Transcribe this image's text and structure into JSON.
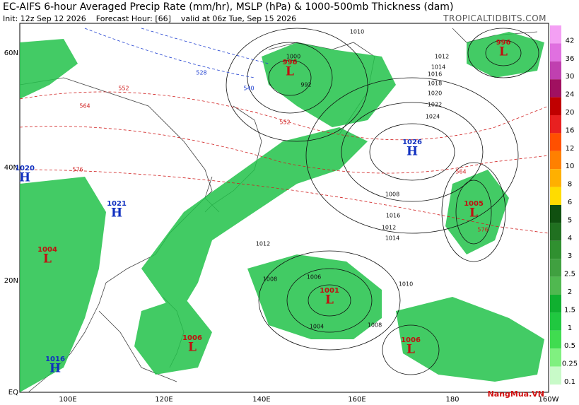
{
  "header": {
    "title": "EC-AIFS 6-hour Averaged Precip Rate (mm/hr), MSLP (hPa) & 1000-500mb Thickness (dam)",
    "init": "Init: 12z Sep 12 2026",
    "forecast_hour": "Forecast Hour: [66]",
    "valid": "valid at 06z Tue, Sep 15 2026",
    "site": "TROPICALTIDBITS.COM"
  },
  "lat_labels": [
    "60N",
    "40N",
    "20N",
    "EQ"
  ],
  "lon_labels": [
    "100E",
    "120E",
    "140E",
    "160E",
    "180",
    "160W"
  ],
  "colorbar": [
    42,
    36,
    30,
    24,
    20,
    16,
    12,
    10,
    8,
    6,
    5,
    4,
    3,
    2.5,
    2,
    1.5,
    1,
    0.5,
    0.25,
    0.1
  ],
  "centers": [
    {
      "letter": "L",
      "value": 996
    },
    {
      "letter": "H",
      "value": 1026
    },
    {
      "letter": "L",
      "value": 996
    },
    {
      "letter": "L",
      "value": 1005
    },
    {
      "letter": "L",
      "value": 1001
    },
    {
      "letter": "L",
      "value": 1006
    },
    {
      "letter": "L",
      "value": 1006
    },
    {
      "letter": "H",
      "value": 1020
    },
    {
      "letter": "H",
      "value": 1021
    },
    {
      "letter": "L",
      "value": 1004
    },
    {
      "letter": "H",
      "value": 1016
    }
  ],
  "isobar_labels": [
    "1010",
    "1012",
    "1014",
    "1016",
    "1018",
    "1020",
    "1022",
    "1024",
    "1008",
    "1012",
    "1014",
    "1016",
    "1010",
    "1008",
    "1004",
    "1006",
    "1008",
    "1012",
    "1000",
    "992"
  ],
  "thickness_labels": [
    "552",
    "564",
    "576",
    "552",
    "564",
    "576",
    "540",
    "528"
  ],
  "watermark": "NangMua.VN"
}
